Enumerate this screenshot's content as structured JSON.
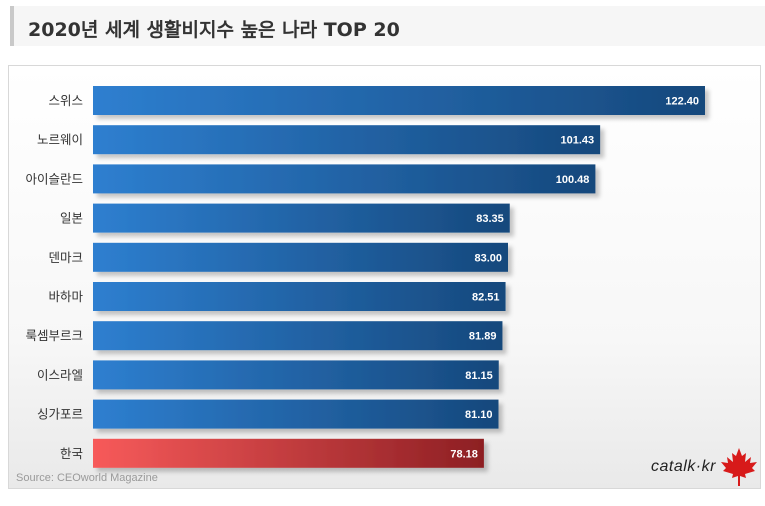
{
  "title": "2020년 세계 생활비지수 높은 나라 TOP 20",
  "source": "Source: CEOworld Magazine",
  "logo": "catalk·kr",
  "colors": {
    "bar_dark": "#16487c",
    "bar_light": "#2e7fd0",
    "highlight_dark": "#8d1f23",
    "highlight_light": "#f75a5a"
  },
  "chart_data": {
    "type": "bar",
    "orientation": "horizontal",
    "categories": [
      "스위스",
      "노르웨이",
      "아이슬란드",
      "일본",
      "덴마크",
      "바하마",
      "룩셈부르크",
      "이스라엘",
      "싱가포르",
      "한국"
    ],
    "values": [
      122.4,
      101.43,
      100.48,
      83.35,
      83.0,
      82.51,
      81.89,
      81.15,
      81.1,
      78.18
    ],
    "value_labels": [
      "122.40",
      "101.43",
      "100.48",
      "83.35",
      "83.00",
      "82.51",
      "81.89",
      "81.15",
      "81.10",
      "78.18"
    ],
    "highlight": "한국",
    "xlim": [
      0,
      140
    ],
    "grid": false,
    "legend": "none"
  }
}
